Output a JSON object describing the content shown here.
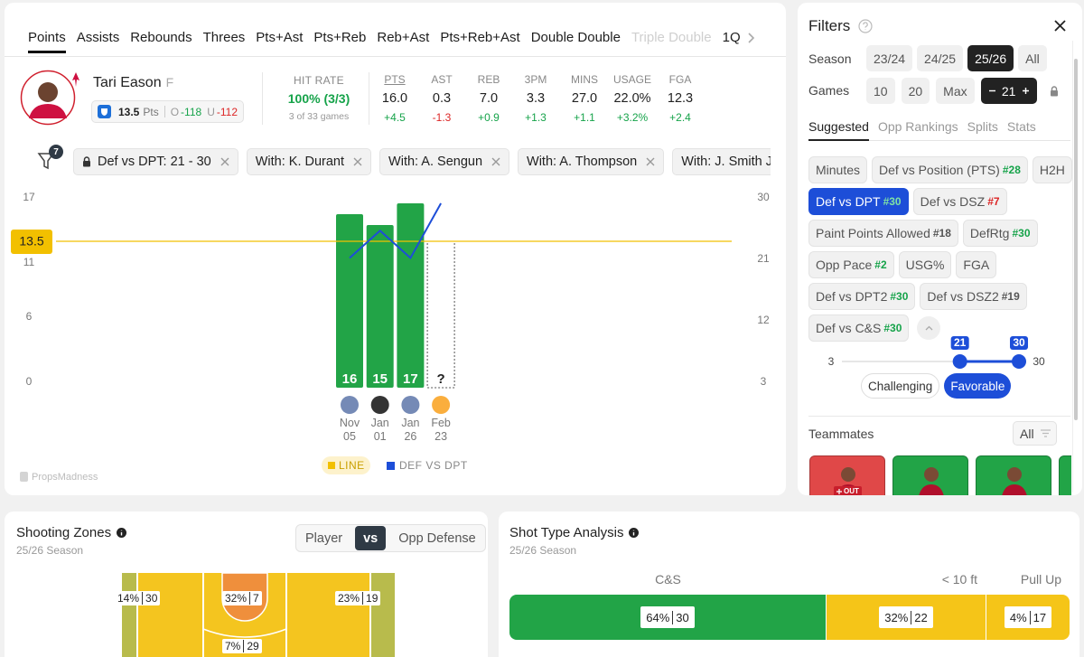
{
  "tabs": [
    {
      "label": "Points",
      "active": true
    },
    {
      "label": "Assists"
    },
    {
      "label": "Rebounds"
    },
    {
      "label": "Threes"
    },
    {
      "label": "Pts+Ast"
    },
    {
      "label": "Pts+Reb"
    },
    {
      "label": "Reb+Ast"
    },
    {
      "label": "Pts+Reb+Ast"
    },
    {
      "label": "Double Double"
    },
    {
      "label": "Triple Double",
      "disabled": true
    },
    {
      "label": "1Q"
    }
  ],
  "player": {
    "name": "Tari Eason",
    "position": "F",
    "line": "13.5",
    "unit": "Pts",
    "over_label": "O",
    "over_odds": "-118",
    "under_label": "U",
    "under_odds": "-112"
  },
  "hit_rate": {
    "label": "HIT RATE",
    "value": "100% (3/3)",
    "detail": "3 of 33 games"
  },
  "stats": [
    {
      "label": "PTS",
      "value": "16.0",
      "diff": "+4.5"
    },
    {
      "label": "AST",
      "value": "0.3",
      "diff": "-1.3"
    },
    {
      "label": "REB",
      "value": "7.0",
      "diff": "+0.9"
    },
    {
      "label": "3PM",
      "value": "3.3",
      "diff": "+1.3"
    },
    {
      "label": "MINS",
      "value": "27.0",
      "diff": "+1.1"
    },
    {
      "label": "USAGE",
      "value": "22.0%",
      "diff": "+3.2%"
    },
    {
      "label": "FGA",
      "value": "12.3",
      "diff": "+2.4"
    }
  ],
  "filter_count": "7",
  "active_filters": [
    "Def vs DPT: 21 - 30",
    "With: K. Durant",
    "With: A. Sengun",
    "With: A. Thompson",
    "With: J. Smith Jr."
  ],
  "chart_data": {
    "type": "bar",
    "categories": [
      "Nov 05",
      "Jan 01",
      "Jan 26",
      "Feb 23"
    ],
    "values": [
      16,
      15,
      17,
      null
    ],
    "value_labels": [
      "16",
      "15",
      "17",
      "?"
    ],
    "color": "#22a447",
    "series": [
      {
        "name": "DEF VS DPT",
        "color": "#1d4ed8",
        "axis": "y2",
        "values": [
          22,
          26,
          22,
          30
        ]
      }
    ],
    "reference_line": {
      "name": "LINE",
      "value": 13.5,
      "color": "#f2c000"
    },
    "ylim": [
      0,
      17
    ],
    "yticks": [
      0,
      6,
      11,
      17
    ],
    "y2lim": [
      3,
      30
    ],
    "y2ticks": [
      3,
      12,
      21,
      30
    ],
    "grid": false,
    "watermark": "PropsMadness"
  },
  "filters": {
    "title": "Filters",
    "season": {
      "label": "Season",
      "options": [
        {
          "label": "23/24"
        },
        {
          "label": "24/25"
        },
        {
          "label": "25/26",
          "active": true
        },
        {
          "label": "All"
        }
      ]
    },
    "games": {
      "label": "Games",
      "options": [
        {
          "label": "10"
        },
        {
          "label": "20"
        },
        {
          "label": "Max"
        }
      ],
      "count": "21"
    },
    "tabs": [
      {
        "label": "Suggested",
        "active": true
      },
      {
        "label": "Opp Rankings"
      },
      {
        "label": "Splits"
      },
      {
        "label": "Stats"
      }
    ],
    "chips": [
      {
        "label": "Minutes"
      },
      {
        "label": "Def vs Position (PTS)",
        "rank": "#28",
        "rank_color": "#16a34a"
      },
      {
        "label": "H2H"
      },
      {
        "label": "Def vs DPT",
        "rank": "#30",
        "rank_color": "#16a34a",
        "active": true
      },
      {
        "label": "Def vs DSZ",
        "rank": "#7",
        "rank_color": "#dc2626"
      },
      {
        "label": "Paint Points Allowed",
        "rank": "#18",
        "rank_color": "#555555"
      },
      {
        "label": "DefRtg",
        "rank": "#30",
        "rank_color": "#16a34a"
      },
      {
        "label": "Opp Pace",
        "rank": "#2",
        "rank_color": "#16a34a"
      },
      {
        "label": "USG%"
      },
      {
        "label": "FGA"
      },
      {
        "label": "Def vs DPT2",
        "rank": "#30",
        "rank_color": "#16a34a"
      },
      {
        "label": "Def vs DSZ2",
        "rank": "#19",
        "rank_color": "#555555"
      },
      {
        "label": "Def vs C&S",
        "rank": "#30",
        "rank_color": "#16a34a"
      }
    ],
    "range": {
      "min": 3,
      "max": 30,
      "low": 21,
      "high": 30
    },
    "modes": [
      {
        "label": "Challenging"
      },
      {
        "label": "Favorable",
        "active": true
      }
    ],
    "teammates": {
      "label": "Teammates",
      "option": "All",
      "players": [
        {
          "status": "OUT",
          "color": "#e04848"
        },
        {
          "color": "#22a447"
        },
        {
          "color": "#22a447"
        },
        {
          "color": "#22a447"
        }
      ]
    }
  },
  "shooting_zones": {
    "title": "Shooting Zones",
    "season": "25/26 Season",
    "toggle": [
      {
        "label": "Player"
      },
      {
        "label": "vs",
        "active": true
      },
      {
        "label": "Opp Defense"
      }
    ],
    "zones": [
      {
        "pct": "14%",
        "count": "30"
      },
      {
        "pct": "32%",
        "count": "7"
      },
      {
        "pct": "23%",
        "count": "19"
      },
      {
        "pct": "7%",
        "count": "29"
      }
    ]
  },
  "shot_types": {
    "title": "Shot Type Analysis",
    "season": "25/26 Season",
    "segments": [
      {
        "label": "C&S",
        "pct": "64%",
        "count": "30",
        "color": "#22a447"
      },
      {
        "label": "< 10 ft",
        "pct": "32%",
        "count": "22",
        "color": "#f5c518"
      },
      {
        "label": "Pull Up",
        "pct": "4%",
        "count": "17",
        "color": "#f5c518"
      }
    ]
  }
}
